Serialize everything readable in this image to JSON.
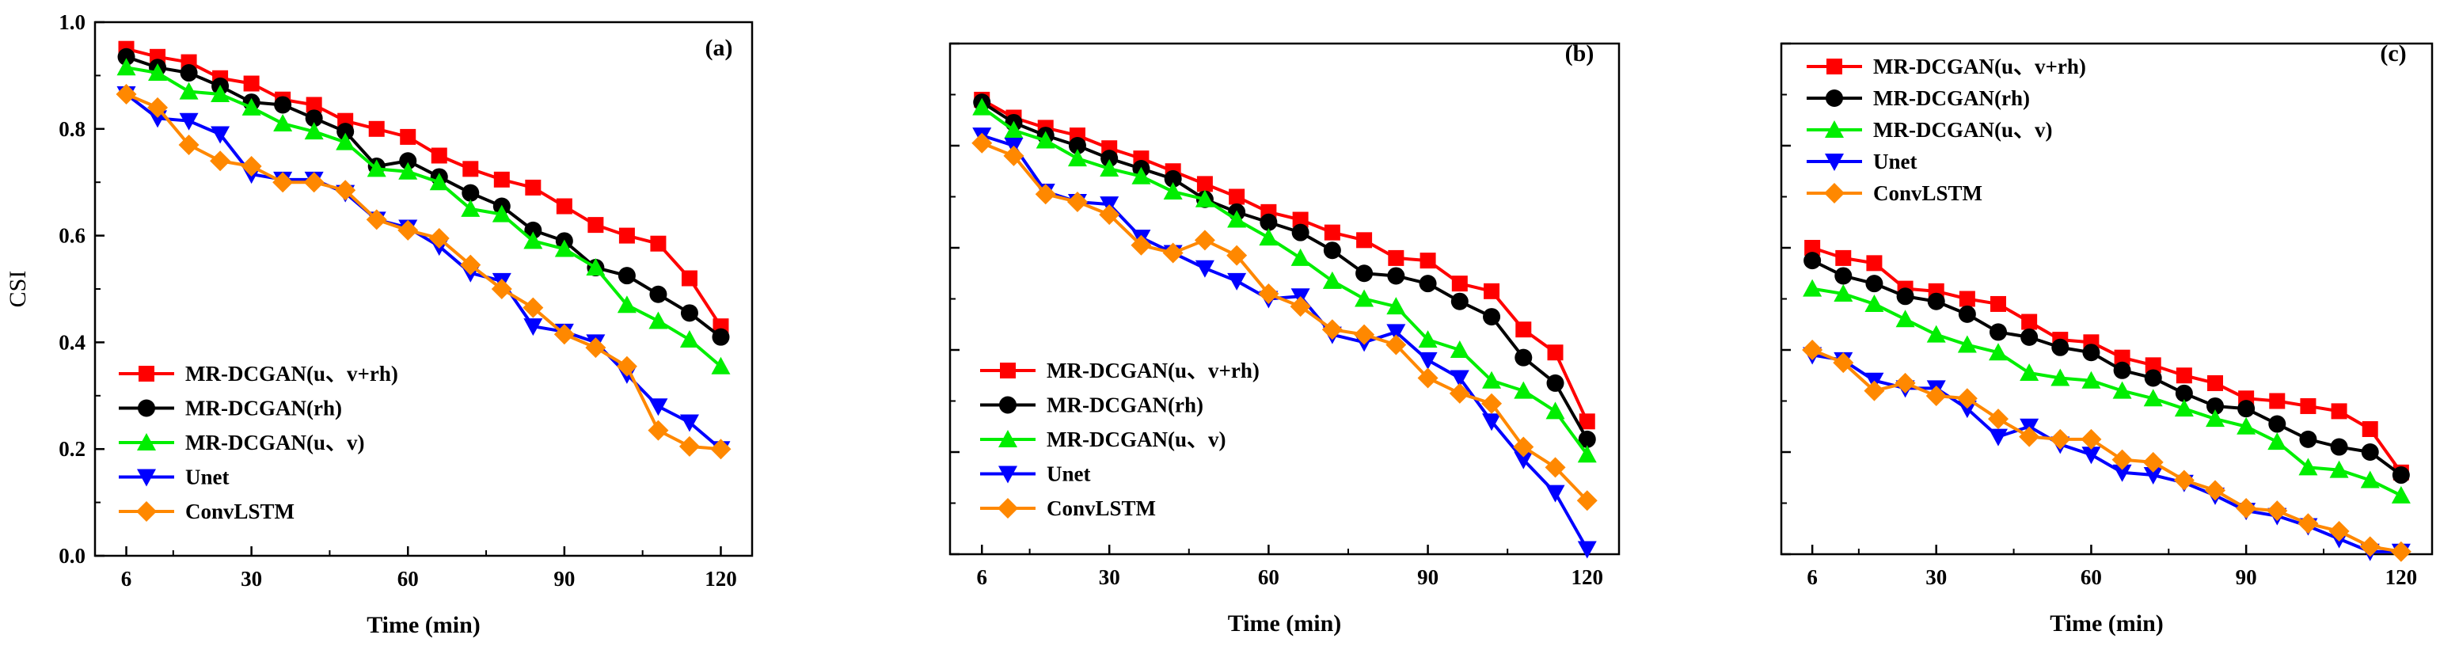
{
  "chart_data": [
    {
      "type": "line",
      "panel_label": "(a)",
      "xlabel": "Time (min)",
      "ylabel": "CSI",
      "show_y_tick_labels": true,
      "xlim": [
        0,
        126
      ],
      "ylim": [
        0,
        1.0
      ],
      "x_ticks": [
        6,
        30,
        60,
        90,
        120
      ],
      "y_ticks": [
        "0.0",
        "0.2",
        "0.4",
        "0.6",
        "0.8",
        "1.0"
      ],
      "legend_position": "lower-left",
      "x": [
        6,
        12,
        18,
        24,
        30,
        36,
        42,
        48,
        54,
        60,
        66,
        72,
        78,
        84,
        90,
        96,
        102,
        108,
        114,
        120
      ],
      "series": [
        {
          "name": "MR-DCGAN(u、v+rh)",
          "color": "#ff0000",
          "marker": "square",
          "values": [
            0.95,
            0.935,
            0.925,
            0.895,
            0.885,
            0.855,
            0.845,
            0.815,
            0.8,
            0.785,
            0.75,
            0.725,
            0.705,
            0.69,
            0.655,
            0.62,
            0.6,
            0.585,
            0.52,
            0.43
          ]
        },
        {
          "name": "MR-DCGAN(rh)",
          "color": "#000000",
          "marker": "circle",
          "values": [
            0.935,
            0.915,
            0.905,
            0.88,
            0.85,
            0.845,
            0.82,
            0.795,
            0.73,
            0.74,
            0.71,
            0.68,
            0.655,
            0.61,
            0.59,
            0.54,
            0.525,
            0.49,
            0.455,
            0.41
          ]
        },
        {
          "name": "MR-DCGAN(u、v)",
          "color": "#00ee00",
          "marker": "triangle-up",
          "values": [
            0.915,
            0.905,
            0.87,
            0.865,
            0.84,
            0.81,
            0.795,
            0.775,
            0.725,
            0.72,
            0.7,
            0.65,
            0.64,
            0.59,
            0.575,
            0.54,
            0.47,
            0.44,
            0.405,
            0.355
          ]
        },
        {
          "name": "Unet",
          "color": "#0000ff",
          "marker": "triangle-down",
          "values": [
            0.865,
            0.82,
            0.815,
            0.79,
            0.715,
            0.705,
            0.705,
            0.68,
            0.63,
            0.615,
            0.58,
            0.53,
            0.515,
            0.43,
            0.42,
            0.4,
            0.34,
            0.28,
            0.25,
            0.2
          ]
        },
        {
          "name": "ConvLSTM",
          "color": "#ff8800",
          "marker": "diamond",
          "values": [
            0.865,
            0.84,
            0.77,
            0.74,
            0.73,
            0.7,
            0.7,
            0.685,
            0.63,
            0.61,
            0.595,
            0.545,
            0.5,
            0.465,
            0.415,
            0.39,
            0.355,
            0.235,
            0.205,
            0.2
          ]
        }
      ]
    },
    {
      "type": "line",
      "panel_label": "(b)",
      "xlabel": "Time (min)",
      "ylabel": "",
      "show_y_tick_labels": false,
      "xlim": [
        0,
        126
      ],
      "ylim": [
        0,
        1.0
      ],
      "x_ticks": [
        6,
        30,
        60,
        90,
        120
      ],
      "legend_position": "lower-left",
      "x": [
        6,
        12,
        18,
        24,
        30,
        36,
        42,
        48,
        54,
        60,
        66,
        72,
        78,
        84,
        90,
        96,
        102,
        108,
        114,
        120
      ],
      "series": [
        {
          "name": "MR-DCGAN(u、v+rh)",
          "color": "#ff0000",
          "marker": "square",
          "values": [
            0.89,
            0.855,
            0.835,
            0.82,
            0.795,
            0.775,
            0.75,
            0.725,
            0.7,
            0.67,
            0.655,
            0.63,
            0.615,
            0.58,
            0.575,
            0.53,
            0.515,
            0.44,
            0.395,
            0.26
          ]
        },
        {
          "name": "MR-DCGAN(rh)",
          "color": "#000000",
          "marker": "circle",
          "values": [
            0.885,
            0.845,
            0.82,
            0.8,
            0.775,
            0.755,
            0.735,
            0.695,
            0.67,
            0.65,
            0.63,
            0.595,
            0.55,
            0.545,
            0.53,
            0.495,
            0.465,
            0.385,
            0.335,
            0.225
          ]
        },
        {
          "name": "MR-DCGAN(u、v)",
          "color": "#00ee00",
          "marker": "triangle-up",
          "values": [
            0.875,
            0.83,
            0.81,
            0.775,
            0.755,
            0.74,
            0.71,
            0.695,
            0.655,
            0.62,
            0.58,
            0.535,
            0.5,
            0.485,
            0.42,
            0.4,
            0.34,
            0.32,
            0.28,
            0.195
          ]
        },
        {
          "name": "Unet",
          "color": "#0000ff",
          "marker": "triangle-down",
          "values": [
            0.82,
            0.8,
            0.71,
            0.69,
            0.685,
            0.62,
            0.59,
            0.56,
            0.535,
            0.5,
            0.505,
            0.43,
            0.415,
            0.435,
            0.38,
            0.345,
            0.26,
            0.185,
            0.12,
            0.01
          ]
        },
        {
          "name": "ConvLSTM",
          "color": "#ff8800",
          "marker": "diamond",
          "values": [
            0.805,
            0.78,
            0.705,
            0.69,
            0.665,
            0.605,
            0.59,
            0.615,
            0.585,
            0.51,
            0.485,
            0.44,
            0.43,
            0.41,
            0.345,
            0.315,
            0.295,
            0.21,
            0.17,
            0.105
          ]
        }
      ]
    },
    {
      "type": "line",
      "panel_label": "(c)",
      "xlabel": "Time (min)",
      "ylabel": "",
      "show_y_tick_labels": false,
      "xlim": [
        0,
        126
      ],
      "ylim": [
        0,
        1.0
      ],
      "x_ticks": [
        6,
        30,
        60,
        90,
        120
      ],
      "legend_position": "top-left",
      "x": [
        6,
        12,
        18,
        24,
        30,
        36,
        42,
        48,
        54,
        60,
        66,
        72,
        78,
        84,
        90,
        96,
        102,
        108,
        114,
        120
      ],
      "series": [
        {
          "name": "MR-DCGAN(u、v+rh)",
          "color": "#ff0000",
          "marker": "square",
          "values": [
            0.6,
            0.58,
            0.57,
            0.52,
            0.515,
            0.5,
            0.49,
            0.455,
            0.42,
            0.415,
            0.385,
            0.37,
            0.35,
            0.335,
            0.305,
            0.3,
            0.29,
            0.28,
            0.245,
            0.16
          ]
        },
        {
          "name": "MR-DCGAN(rh)",
          "color": "#000000",
          "marker": "circle",
          "values": [
            0.575,
            0.545,
            0.53,
            0.505,
            0.495,
            0.47,
            0.435,
            0.425,
            0.405,
            0.395,
            0.36,
            0.345,
            0.315,
            0.29,
            0.285,
            0.255,
            0.225,
            0.21,
            0.2,
            0.155
          ]
        },
        {
          "name": "MR-DCGAN(u、v)",
          "color": "#00ee00",
          "marker": "triangle-up",
          "values": [
            0.52,
            0.51,
            0.49,
            0.46,
            0.43,
            0.41,
            0.395,
            0.355,
            0.345,
            0.34,
            0.32,
            0.305,
            0.285,
            0.265,
            0.25,
            0.22,
            0.17,
            0.165,
            0.145,
            0.115
          ]
        },
        {
          "name": "Unet",
          "color": "#0000ff",
          "marker": "triangle-down",
          "values": [
            0.39,
            0.38,
            0.34,
            0.325,
            0.325,
            0.285,
            0.23,
            0.25,
            0.215,
            0.195,
            0.16,
            0.155,
            0.14,
            0.115,
            0.085,
            0.075,
            0.055,
            0.03,
            0.005,
            0.005
          ]
        },
        {
          "name": "ConvLSTM",
          "color": "#ff8800",
          "marker": "diamond",
          "values": [
            0.4,
            0.375,
            0.32,
            0.335,
            0.31,
            0.305,
            0.265,
            0.23,
            0.225,
            0.225,
            0.185,
            0.18,
            0.145,
            0.125,
            0.09,
            0.085,
            0.06,
            0.045,
            0.015,
            0.005
          ]
        }
      ]
    }
  ]
}
